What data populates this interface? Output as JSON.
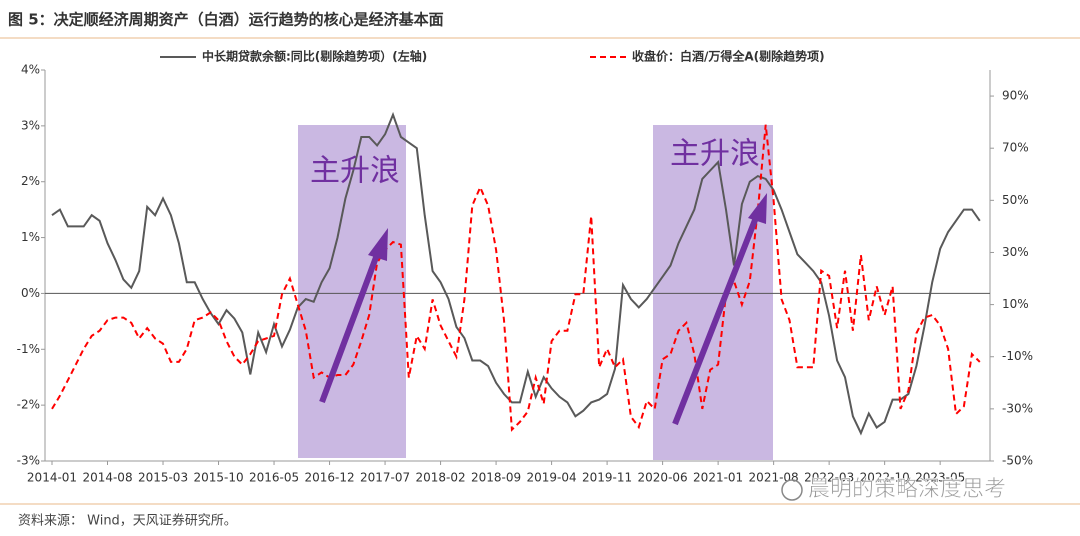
{
  "chart_data": {
    "type": "line",
    "title": "图 5：决定顺经济周期资产（白酒）运行趋势的核心是经济基本面",
    "source": "资料来源： Wind，天风证券研究所。",
    "watermark": "晨明的策略深度思考",
    "annotations": [
      {
        "text": "主升浪"
      },
      {
        "text": "主升浪"
      }
    ],
    "categories": [
      "2014-01",
      null,
      null,
      null,
      null,
      null,
      null,
      "2014-08",
      null,
      null,
      null,
      null,
      null,
      null,
      "2015-03",
      null,
      null,
      null,
      null,
      null,
      null,
      "2015-10",
      null,
      null,
      null,
      null,
      null,
      null,
      "2016-05",
      null,
      null,
      null,
      null,
      null,
      null,
      "2016-12",
      null,
      null,
      null,
      null,
      null,
      null,
      "2017-07",
      null,
      null,
      null,
      null,
      null,
      null,
      "2018-02",
      null,
      null,
      null,
      null,
      null,
      null,
      "2018-09",
      null,
      null,
      null,
      null,
      null,
      null,
      "2019-04",
      null,
      null,
      null,
      null,
      null,
      null,
      "2019-11",
      null,
      null,
      null,
      null,
      null,
      null,
      "2020-06",
      null,
      null,
      null,
      null,
      null,
      null,
      "2021-01",
      null,
      null,
      null,
      null,
      null,
      null,
      "2021-08",
      null,
      null,
      null,
      null,
      null,
      null,
      "2022-03",
      null,
      null,
      null,
      null,
      null,
      null,
      "2022-10",
      null,
      null,
      null,
      null,
      null,
      null,
      "2023-05",
      null,
      null,
      null,
      null,
      null
    ],
    "series": [
      {
        "name": "中长期贷款余额:同比(剔除趋势项）(左轴)",
        "color": "#595959",
        "dash": false,
        "axis": "y",
        "values": [
          1.4,
          1.5,
          1.2,
          1.2,
          1.2,
          1.4,
          1.3,
          0.9,
          0.6,
          0.25,
          0.1,
          0.4,
          1.55,
          1.4,
          1.7,
          1.4,
          0.9,
          0.2,
          0.2,
          -0.1,
          -0.35,
          -0.55,
          -0.3,
          -0.45,
          -0.7,
          -1.45,
          -0.7,
          -1.05,
          -0.55,
          -0.95,
          -0.65,
          -0.25,
          -0.1,
          -0.15,
          0.2,
          0.45,
          1.0,
          1.7,
          2.2,
          2.8,
          2.8,
          2.65,
          2.85,
          3.2,
          2.8,
          2.7,
          2.6,
          1.4,
          0.4,
          0.2,
          -0.1,
          -0.6,
          -0.8,
          -1.2,
          -1.2,
          -1.3,
          -1.6,
          -1.8,
          -1.95,
          -1.95,
          -1.4,
          -1.85,
          -1.5,
          -1.7,
          -1.85,
          -1.95,
          -2.2,
          -2.1,
          -1.95,
          -1.9,
          -1.8,
          -1.35,
          0.15,
          -0.1,
          -0.25,
          -0.1,
          0.1,
          0.3,
          0.5,
          0.9,
          1.2,
          1.5,
          2.05,
          2.2,
          2.35,
          1.5,
          0.5,
          1.6,
          2.0,
          2.1,
          2.05,
          1.85,
          1.5,
          1.1,
          0.7,
          0.55,
          0.4,
          0.2,
          -0.4,
          -1.2,
          -1.5,
          -2.2,
          -2.5,
          -2.15,
          -2.4,
          -2.3,
          -1.9,
          -1.9,
          -1.8,
          -1.3,
          -0.6,
          0.2,
          0.8,
          1.1,
          1.3,
          1.5,
          1.5,
          1.3
        ]
      },
      {
        "name": "收盘价：白酒/万得全A(剔除趋势项)",
        "color": "#ff0000",
        "dash": true,
        "axis": "y2",
        "values": [
          -30,
          -25,
          -19,
          -13,
          -7,
          -2,
          0,
          4,
          5,
          5,
          3,
          -3,
          1,
          -3,
          -5,
          -12,
          -12,
          -7,
          4,
          5,
          7,
          4,
          -4,
          -10,
          -13,
          -9,
          -4,
          -3,
          -2,
          14,
          20,
          10,
          0,
          -18,
          -16,
          -18,
          -17,
          -17,
          -13,
          -4,
          6,
          26,
          31,
          34,
          33,
          -18,
          -2,
          -7,
          12,
          2,
          -4,
          -10,
          12,
          48,
          55,
          48,
          31,
          4,
          -38,
          -35,
          -31,
          -18,
          -28,
          -4,
          0,
          0,
          14,
          14,
          44,
          -14,
          -7,
          -14,
          -11,
          -33,
          -37,
          -27,
          -30,
          -11,
          -9,
          0,
          3,
          -9,
          -30,
          -15,
          -13,
          14,
          19,
          10,
          19,
          46,
          79,
          50,
          12,
          4,
          -14,
          -14,
          -14,
          23,
          21,
          1,
          23,
          0,
          29,
          4,
          17,
          6,
          17,
          -30,
          -23,
          -1,
          5,
          6,
          2,
          -7,
          -32,
          -29,
          -9,
          -12
        ]
      }
    ],
    "ylim": [
      -3,
      4
    ],
    "yticks": [
      {
        "value": -3,
        "label": "-3%"
      },
      {
        "value": -2,
        "label": "-2%"
      },
      {
        "value": -1,
        "label": "-1%"
      },
      {
        "value": 0,
        "label": "0%"
      },
      {
        "value": 1,
        "label": "1%"
      },
      {
        "value": 2,
        "label": "2%"
      },
      {
        "value": 3,
        "label": "3%"
      },
      {
        "value": 4,
        "label": "4%"
      }
    ],
    "y2lim": [
      -50,
      100
    ],
    "y2ticks": [
      {
        "value": -50,
        "label": "-50%"
      },
      {
        "value": -30,
        "label": "-30%"
      },
      {
        "value": -10,
        "label": "-10%"
      },
      {
        "value": 10,
        "label": "10%"
      },
      {
        "value": 30,
        "label": "30%"
      },
      {
        "value": 50,
        "label": "50%"
      },
      {
        "value": 70,
        "label": "70%"
      },
      {
        "value": 90,
        "label": "90%"
      }
    ],
    "legend": "top"
  }
}
